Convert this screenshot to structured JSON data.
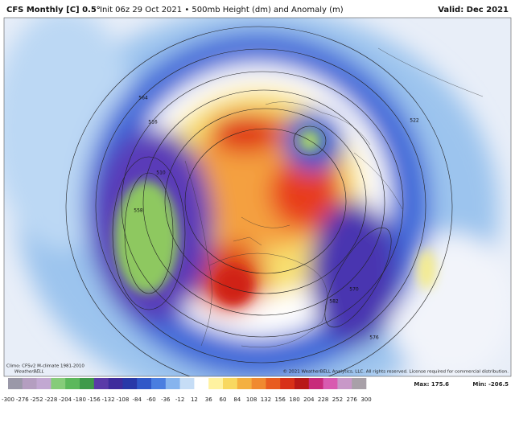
{
  "header": {
    "model": "CFS Monthly [C] 0.5°",
    "subtitle": "Init 06z 29 Oct 2021 • 500mb Height (dm) and Anomaly (m)",
    "valid": "Valid: Dec 2021"
  },
  "map": {
    "contour_labels": [
      "564",
      "516",
      "510",
      "558",
      "570",
      "582",
      "576",
      "522"
    ],
    "logo": "WeatherBELL"
  },
  "footer": {
    "climo": "Climo: CFSv2 M-climate 1981-2010",
    "copyright": "© 2021 WeatherBELL Analytics, LLC. All rights reserved. License required for commercial distribution.",
    "max": "Max: 175.6",
    "min": "Min: -206.5"
  },
  "colorbar": {
    "labels": [
      -300,
      -276,
      -252,
      -228,
      -204,
      -180,
      -156,
      -132,
      -108,
      -84,
      -60,
      -36,
      -12,
      12,
      36,
      60,
      84,
      108,
      132,
      156,
      180,
      204,
      228,
      252,
      276,
      300
    ]
  }
}
